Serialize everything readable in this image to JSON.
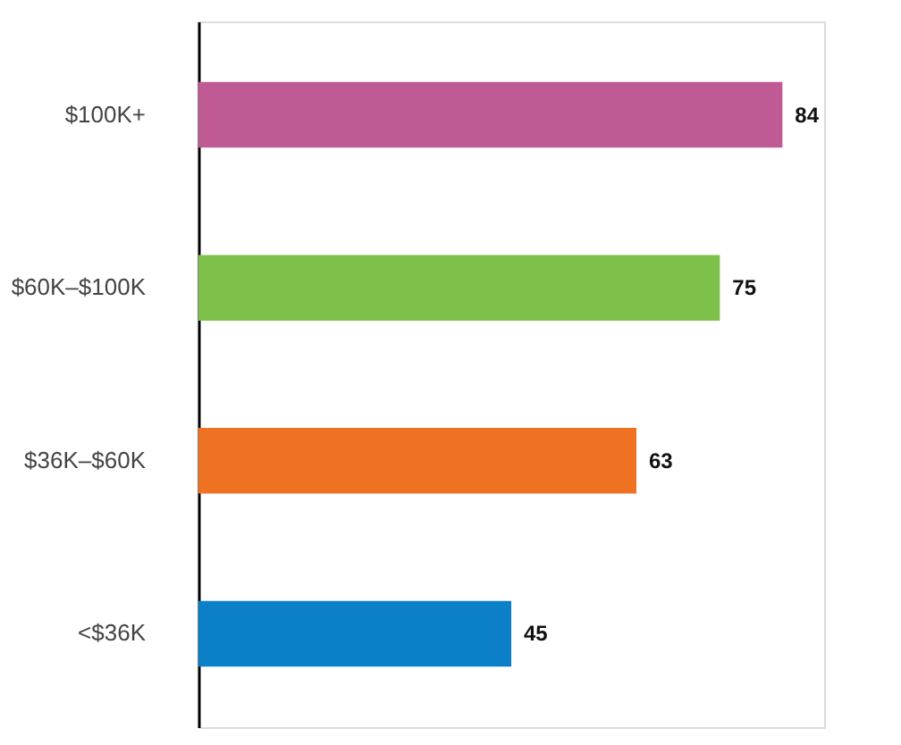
{
  "chart_data": {
    "type": "bar",
    "orientation": "horizontal",
    "categories": [
      "$100K+",
      "$60K–$100K",
      "$36K–$60K",
      "<$36K"
    ],
    "values": [
      84,
      75,
      63,
      45
    ],
    "colors": [
      "#c05a94",
      "#7dc14a",
      "#ef7122",
      "#0b7fc7"
    ],
    "xlim": [
      0,
      90
    ],
    "tick_labels": "y",
    "data_labels": true,
    "grid": false,
    "legend": false
  }
}
